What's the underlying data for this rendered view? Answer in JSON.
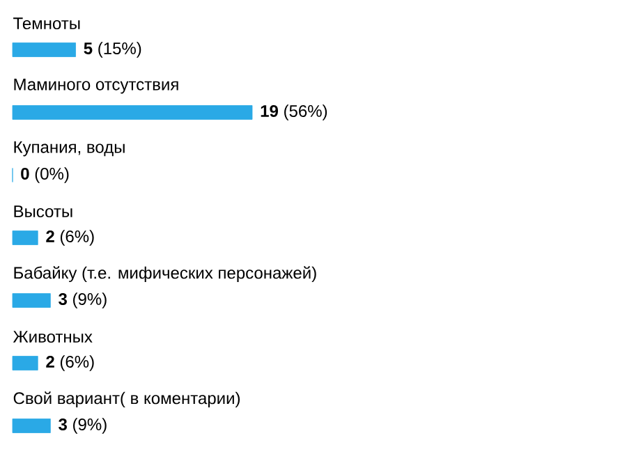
{
  "chart_data": {
    "type": "bar",
    "orientation": "horizontal",
    "color": "#2aa9e6",
    "categories": [
      "Темноты",
      "Маминого отсутствия",
      "Купания, воды",
      "Высоты",
      "Бабайку (т.е. мифических персонажей)",
      "Животных",
      "Свой вариант( в коментарии)"
    ],
    "values": [
      5,
      19,
      0,
      2,
      3,
      2,
      3
    ],
    "value_labels": [
      "**5** (15%)",
      "**19** (56%)",
      "**0** (0%)",
      "**2** (6%)",
      "**3** (9%)",
      "**2** (6%)",
      "**3** (9%)"
    ]
  }
}
